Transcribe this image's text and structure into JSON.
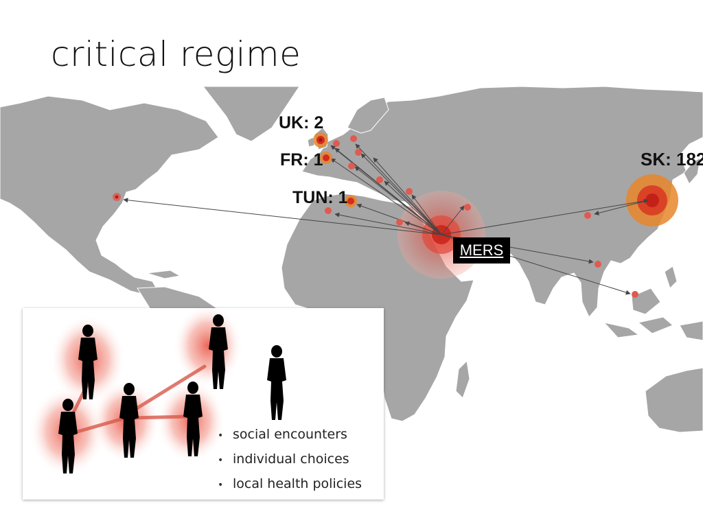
{
  "slide": {
    "title": "critical regime"
  },
  "map": {
    "source_label": "MERS",
    "labels": [
      {
        "id": "uk",
        "text": "UK: 2"
      },
      {
        "id": "fr",
        "text": "FR: 1"
      },
      {
        "id": "tun",
        "text": "TUN: 1"
      },
      {
        "id": "sk",
        "text": "SK: 182"
      }
    ],
    "colors": {
      "land": "#a6a6a6",
      "border": "#ffffff",
      "case_marker": "#d62a1e",
      "halo": "#e8862a",
      "arrow": "#444444"
    }
  },
  "inset": {
    "bullets": [
      "social encounters",
      "individual choices",
      "local health policies"
    ]
  }
}
